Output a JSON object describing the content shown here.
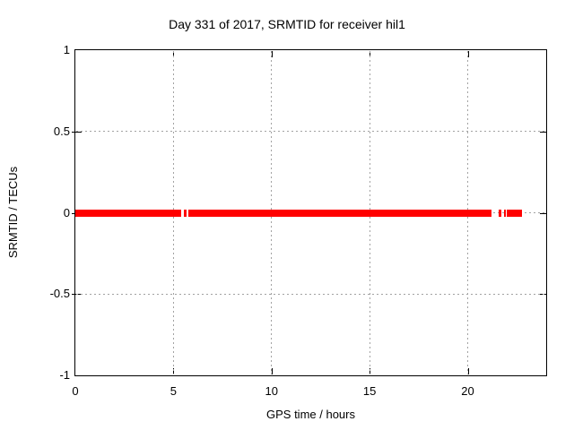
{
  "window": {
    "background": "#ffffff",
    "frame_color": "#000000",
    "grid_color": "#a2a2a2",
    "text_color": "#000000"
  },
  "chart_data": {
    "type": "scatter",
    "title": "Day 331 of 2017, SRMTID for receiver hil1",
    "xlabel": "GPS time / hours",
    "ylabel": "SRMTID / TECUs",
    "xlim": [
      0,
      24
    ],
    "ylim": [
      -1,
      1
    ],
    "xticks": [
      0,
      5,
      10,
      15,
      20
    ],
    "yticks": [
      1,
      0.5,
      0,
      -0.5,
      -1
    ],
    "grid": true,
    "legend": "none",
    "series": [
      {
        "name": "SRMTID",
        "color": "#ff0000",
        "value": 0,
        "thickness_px": 8,
        "segments_hours": [
          [
            0,
            5.4
          ],
          [
            5.53,
            5.67
          ],
          [
            5.76,
            21.21
          ],
          [
            21.58,
            21.71
          ],
          [
            21.85,
            21.94
          ],
          [
            21.99,
            22.77
          ]
        ]
      }
    ]
  }
}
